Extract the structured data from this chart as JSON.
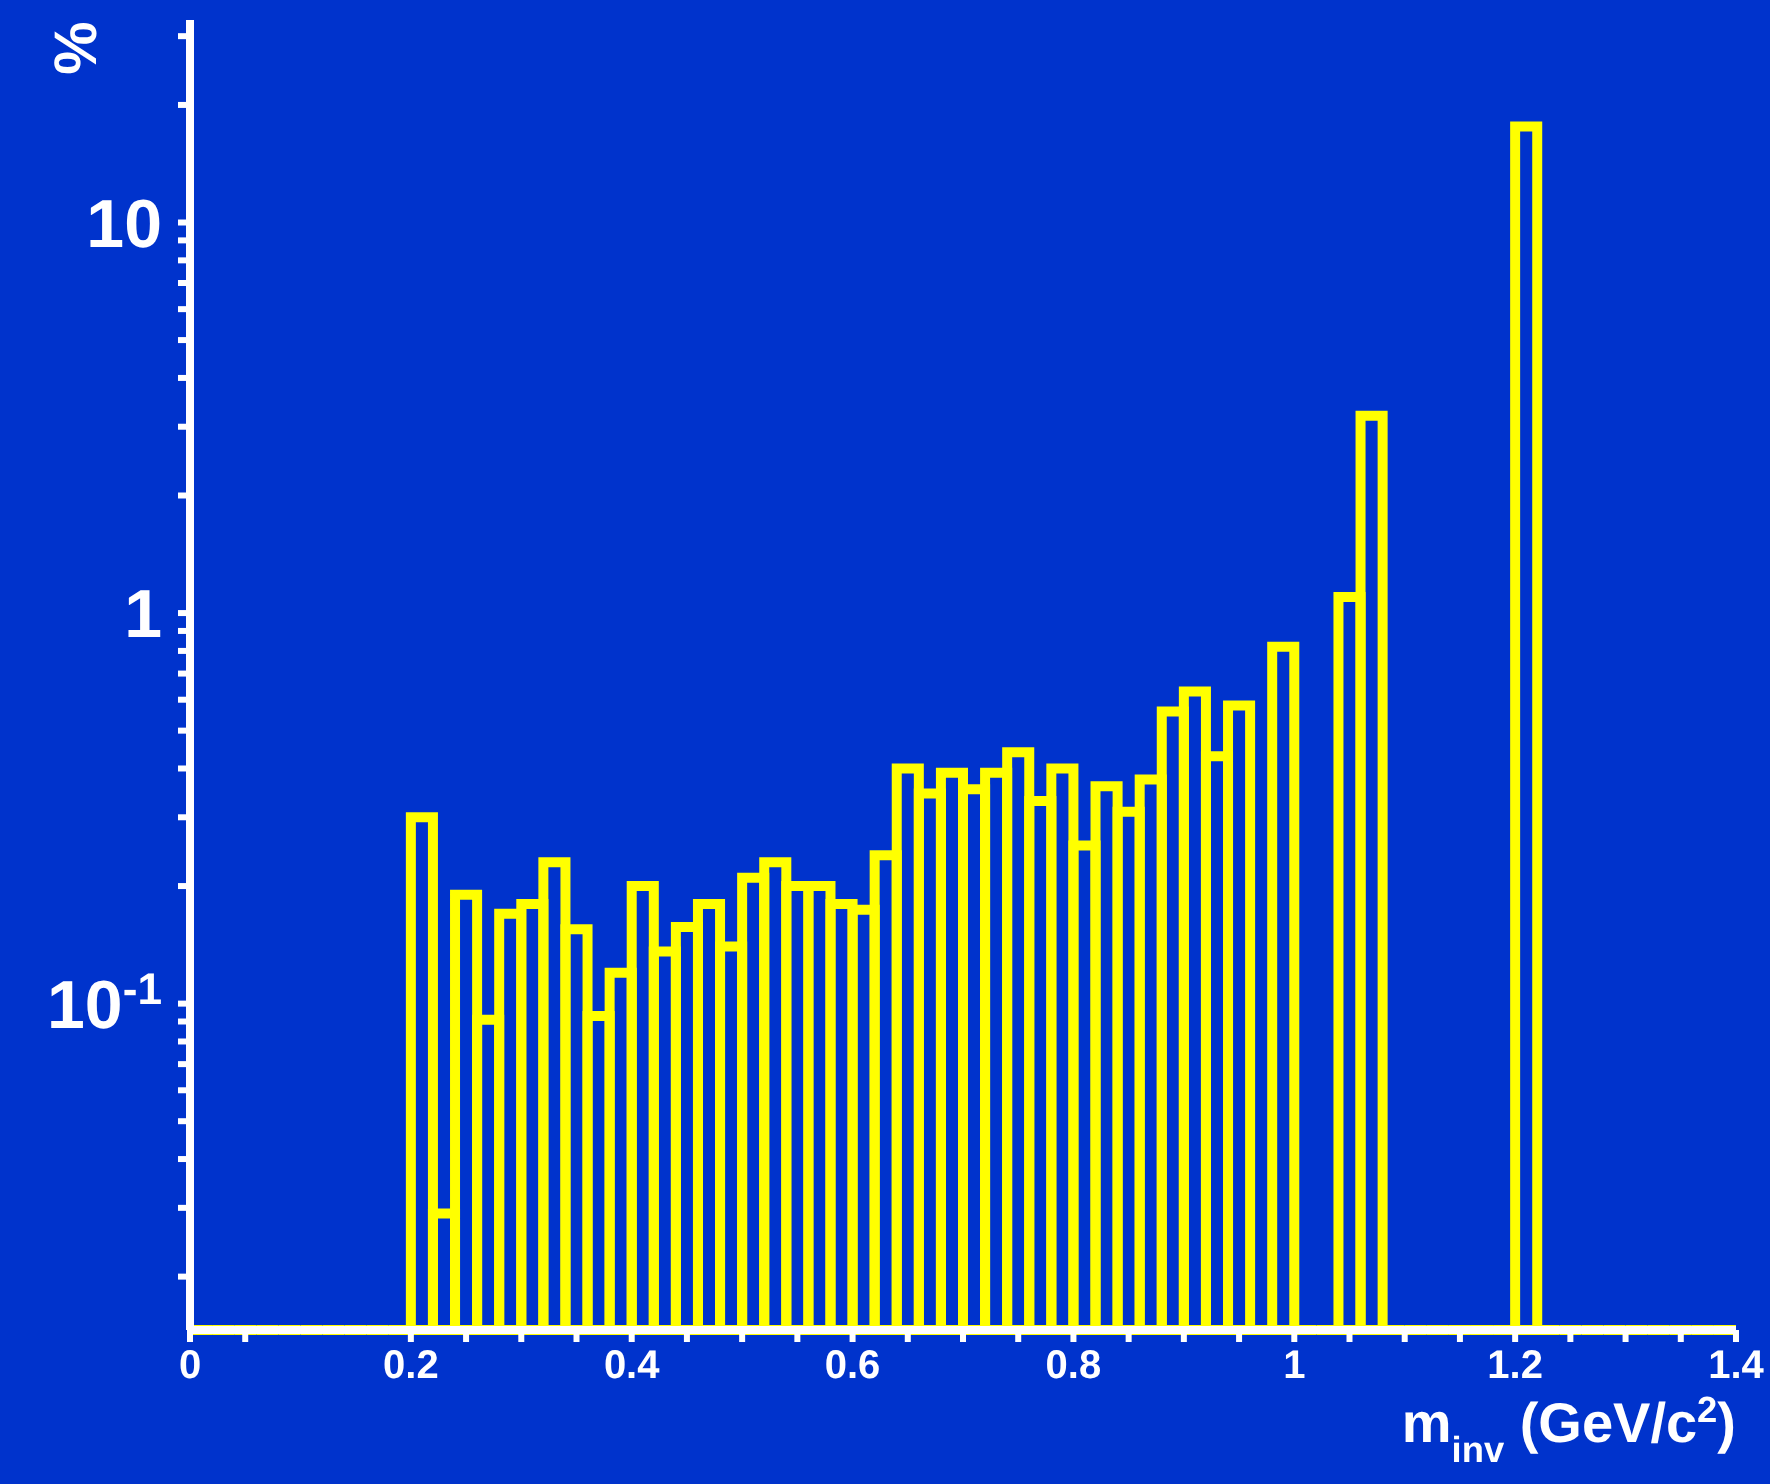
{
  "chart_data": {
    "type": "histogram",
    "xlabel": "m$_{inv}$ (GeV/c$^{2}$)",
    "ylabel": "%",
    "log": "y",
    "color": "#ffff00",
    "bins": [
      0,
      0.02,
      0.04,
      0.06,
      0.08,
      0.1,
      0.12,
      0.14,
      0.16,
      0.18,
      0.2,
      0.22,
      0.24,
      0.26,
      0.28,
      0.3,
      0.32,
      0.34,
      0.36,
      0.38,
      0.4,
      0.42,
      0.44,
      0.46,
      0.48,
      0.5,
      0.52,
      0.54,
      0.56,
      0.58,
      0.6,
      0.62,
      0.64,
      0.66,
      0.68,
      0.7,
      0.72,
      0.74,
      0.76,
      0.78,
      0.8,
      0.82,
      0.84,
      0.86,
      0.88,
      0.9,
      0.92,
      0.94,
      0.96,
      0.98,
      1,
      1.02,
      1.04,
      1.06,
      1.08,
      1.1,
      1.12,
      1.14,
      1.16,
      1.18,
      1.2,
      1.22,
      1.24,
      1.26,
      1.28,
      1.3,
      1.32,
      1.34,
      1.36,
      1.38,
      1.4
    ],
    "values": [
      null,
      null,
      null,
      null,
      null,
      null,
      null,
      null,
      null,
      null,
      0.3,
      0.029,
      0.19,
      0.091,
      0.17,
      0.18,
      0.23,
      0.155,
      0.093,
      0.12,
      0.2,
      0.136,
      0.157,
      0.18,
      0.14,
      0.21,
      0.23,
      0.2,
      0.2,
      0.18,
      0.174,
      0.24,
      0.4,
      0.345,
      0.39,
      0.354,
      0.39,
      0.44,
      0.33,
      0.4,
      0.254,
      0.36,
      0.31,
      0.375,
      0.56,
      0.63,
      0.43,
      0.58,
      null,
      0.82,
      null,
      null,
      1.1,
      3.2,
      null,
      null,
      null,
      null,
      null,
      null,
      17.6,
      null,
      null,
      null,
      null,
      null,
      null,
      null,
      null,
      null
    ],
    "xlim": [
      0,
      1.4
    ],
    "xticks": [
      0,
      {
        "value": 0.05,
        "label": null
      },
      0.2,
      {
        "value": 0.25,
        "label": null
      },
      {
        "value": 0.3,
        "label": null
      },
      {
        "value": 0.35,
        "label": null
      },
      0.4,
      {
        "value": 0.45,
        "label": null
      },
      {
        "value": 0.5,
        "label": null
      },
      {
        "value": 0.55,
        "label": null
      },
      0.6,
      {
        "value": 0.65,
        "label": null
      },
      {
        "value": 0.7,
        "label": null
      },
      {
        "value": 0.75,
        "label": null
      },
      0.8,
      {
        "value": 0.85,
        "label": null
      },
      {
        "value": 0.9,
        "label": null
      },
      {
        "value": 0.95,
        "label": null
      },
      1,
      {
        "value": 1.05,
        "label": null
      },
      {
        "value": 1.1,
        "label": null
      },
      {
        "value": 1.15,
        "label": null
      },
      1.2,
      {
        "value": 1.25,
        "label": null
      },
      {
        "value": 1.3,
        "label": null
      },
      {
        "value": 1.35,
        "label": null
      },
      1.4
    ],
    "ylim": [
      0.0146,
      33
    ],
    "yticks": [
      {
        "value": 0.02,
        "label": null
      },
      {
        "value": 0.03,
        "label": null
      },
      {
        "value": 0.04,
        "label": null
      },
      {
        "value": 0.05,
        "label": null
      },
      {
        "value": 0.06,
        "label": null
      },
      {
        "value": 0.07,
        "label": null
      },
      {
        "value": 0.08,
        "label": null
      },
      {
        "value": 0.09,
        "label": null
      },
      {
        "value": 0.1,
        "label": "10$^{-1}$"
      },
      {
        "value": 0.2,
        "label": null
      },
      {
        "value": 0.3,
        "label": null
      },
      {
        "value": 0.4,
        "label": null
      },
      {
        "value": 0.5,
        "label": null
      },
      {
        "value": 0.6,
        "label": null
      },
      {
        "value": 0.7,
        "label": null
      },
      {
        "value": 0.8,
        "label": null
      },
      {
        "value": 0.9,
        "label": null
      },
      1,
      {
        "value": 2,
        "label": null
      },
      {
        "value": 3,
        "label": null
      },
      {
        "value": 4,
        "label": null
      },
      {
        "value": 5,
        "label": null
      },
      {
        "value": 6,
        "label": null
      },
      {
        "value": 7,
        "label": null
      },
      {
        "value": 8,
        "label": null
      },
      {
        "value": 9,
        "label": null
      },
      10,
      {
        "value": 20,
        "label": null
      },
      {
        "value": 30,
        "label": null
      }
    ]
  }
}
